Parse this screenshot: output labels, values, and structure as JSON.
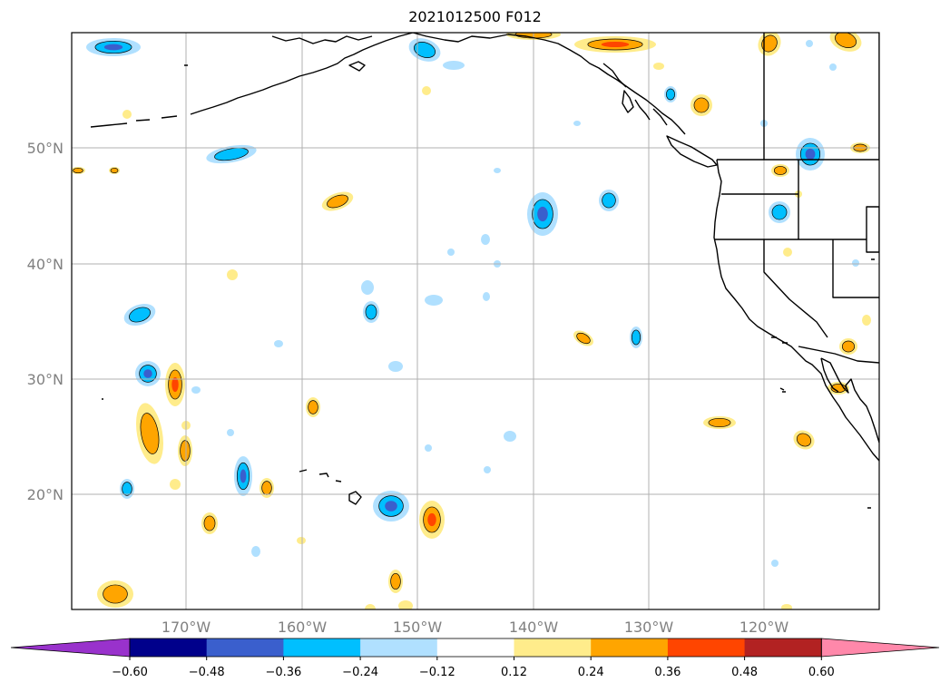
{
  "title": "2021012500 F012",
  "latitude_labels": [
    "50°N",
    "40°N",
    "30°N",
    "20°N"
  ],
  "longitude_labels": [
    "170°W",
    "160°W",
    "150°W",
    "140°W",
    "130°W",
    "120°W"
  ],
  "colorbar": {
    "tick_labels": [
      "−0.60",
      "−0.48",
      "−0.36",
      "−0.24",
      "−0.12",
      "0.12",
      "0.24",
      "0.36",
      "0.48",
      "0.60"
    ],
    "colors": [
      "#9932cc",
      "#00008b",
      "#3a5fcd",
      "#00bfff",
      "#b0e0ff",
      "#ffffff",
      "#ffec8b",
      "#ffa500",
      "#ff4500",
      "#b22222",
      "#ff88aa"
    ]
  },
  "colors": {
    "neg_light": "#b0e0ff",
    "neg_mid": "#00bfff",
    "neg_strong": "#3a5fcd",
    "pos_light": "#ffec8b",
    "pos_mid": "#ffa500",
    "pos_strong": "#ff4500",
    "gridline": "#b0b0b0",
    "coast": "#000000"
  }
}
